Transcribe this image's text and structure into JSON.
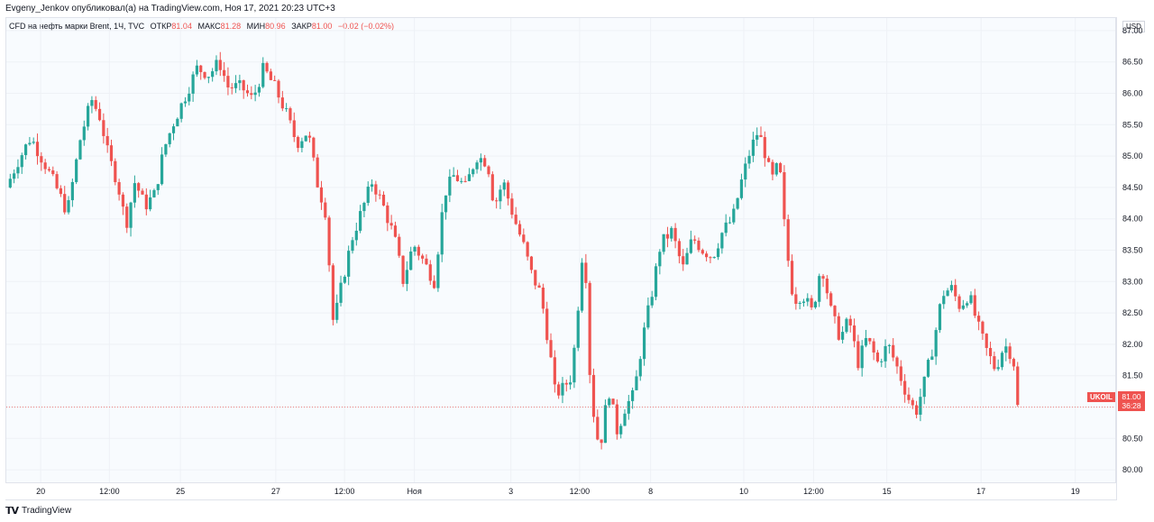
{
  "header": {
    "caption": "Evgeny_Jenkov опубликовал(а) на TradingView.com, Ноя 17, 2021 20:23 UTC+3"
  },
  "legend": {
    "symbol": "CFD на нефть марки Brent, 1Ч, TVC",
    "open_label": "ОТКР",
    "open_value": "81.04",
    "high_label": "МАКС",
    "high_value": "81.28",
    "low_label": "МИН",
    "low_value": "80.96",
    "close_label": "ЗАКР",
    "close_value": "81.00",
    "change_value": "−0.02 (−0.02%)"
  },
  "price_axis": {
    "currency": "USD"
  },
  "last_price": {
    "symbol": "UKOIL",
    "value": "81.00",
    "countdown": "36:28"
  },
  "footer": {
    "logo": "𝗧𝗩",
    "brand": "TradingView"
  },
  "colors": {
    "up": "#26a69a",
    "down": "#ef5350",
    "grid": "#eef1f6"
  },
  "chart_data": {
    "type": "candlestick",
    "title": "",
    "xlabel": "",
    "ylabel": "",
    "y_range": [
      79.8,
      87.2
    ],
    "y_ticks": [
      80.0,
      80.5,
      81.0,
      81.5,
      82.0,
      82.5,
      83.0,
      83.5,
      84.0,
      84.5,
      85.0,
      85.5,
      86.0,
      86.5,
      87.0
    ],
    "y_tick_labels": [
      "80.00",
      "80.50",
      "81.00",
      "81.50",
      "82.00",
      "82.50",
      "83.00",
      "83.50",
      "84.00",
      "84.50",
      "85.00",
      "85.50",
      "86.00",
      "86.50",
      "87.00"
    ],
    "x_ticks": [
      {
        "label": "20",
        "pos": 0.031
      },
      {
        "label": "12:00",
        "pos": 0.093
      },
      {
        "label": "25",
        "pos": 0.157
      },
      {
        "label": "27",
        "pos": 0.243
      },
      {
        "label": "12:00",
        "pos": 0.305
      },
      {
        "label": "Ноя",
        "pos": 0.368
      },
      {
        "label": "3",
        "pos": 0.455
      },
      {
        "label": "12:00",
        "pos": 0.517
      },
      {
        "label": "8",
        "pos": 0.581
      },
      {
        "label": "10",
        "pos": 0.665
      },
      {
        "label": "12:00",
        "pos": 0.728
      },
      {
        "label": "15",
        "pos": 0.794
      },
      {
        "label": "17",
        "pos": 0.879
      },
      {
        "label": "19",
        "pos": 0.964
      }
    ],
    "path_points": [
      [
        0,
        84.5
      ],
      [
        0.01,
        84.9
      ],
      [
        0.022,
        85.3
      ],
      [
        0.034,
        84.9
      ],
      [
        0.045,
        84.5
      ],
      [
        0.055,
        84.1
      ],
      [
        0.067,
        85.3
      ],
      [
        0.077,
        85.9
      ],
      [
        0.085,
        85.6
      ],
      [
        0.092,
        85.0
      ],
      [
        0.1,
        84.6
      ],
      [
        0.108,
        83.9
      ],
      [
        0.116,
        84.6
      ],
      [
        0.125,
        84.2
      ],
      [
        0.134,
        84.4
      ],
      [
        0.142,
        85.1
      ],
      [
        0.15,
        85.5
      ],
      [
        0.16,
        85.9
      ],
      [
        0.172,
        86.4
      ],
      [
        0.183,
        86.3
      ],
      [
        0.192,
        86.5
      ],
      [
        0.2,
        86.1
      ],
      [
        0.212,
        86.1
      ],
      [
        0.222,
        85.9
      ],
      [
        0.232,
        86.4
      ],
      [
        0.242,
        86.1
      ],
      [
        0.252,
        85.7
      ],
      [
        0.262,
        85.2
      ],
      [
        0.272,
        85.4
      ],
      [
        0.28,
        84.6
      ],
      [
        0.288,
        84.1
      ],
      [
        0.295,
        82.3
      ],
      [
        0.303,
        83.0
      ],
      [
        0.312,
        83.7
      ],
      [
        0.32,
        84.1
      ],
      [
        0.33,
        84.6
      ],
      [
        0.34,
        84.2
      ],
      [
        0.35,
        83.7
      ],
      [
        0.358,
        83.0
      ],
      [
        0.367,
        83.6
      ],
      [
        0.377,
        83.3
      ],
      [
        0.386,
        83.0
      ],
      [
        0.395,
        84.4
      ],
      [
        0.404,
        84.7
      ],
      [
        0.414,
        84.5
      ],
      [
        0.424,
        85.0
      ],
      [
        0.434,
        84.9
      ],
      [
        0.44,
        84.2
      ],
      [
        0.448,
        84.6
      ],
      [
        0.458,
        84.0
      ],
      [
        0.466,
        83.6
      ],
      [
        0.474,
        83.1
      ],
      [
        0.482,
        82.8
      ],
      [
        0.49,
        81.9
      ],
      [
        0.495,
        81.2
      ],
      [
        0.502,
        81.3
      ],
      [
        0.51,
        81.5
      ],
      [
        0.516,
        82.7
      ],
      [
        0.521,
        83.8
      ],
      [
        0.527,
        81.2
      ],
      [
        0.535,
        80.3
      ],
      [
        0.543,
        81.3
      ],
      [
        0.551,
        80.6
      ],
      [
        0.558,
        81.0
      ],
      [
        0.566,
        81.2
      ],
      [
        0.574,
        82.1
      ],
      [
        0.582,
        82.8
      ],
      [
        0.59,
        83.6
      ],
      [
        0.6,
        83.8
      ],
      [
        0.61,
        83.2
      ],
      [
        0.619,
        83.7
      ],
      [
        0.628,
        83.5
      ],
      [
        0.637,
        83.4
      ],
      [
        0.646,
        83.8
      ],
      [
        0.655,
        84.0
      ],
      [
        0.663,
        84.6
      ],
      [
        0.671,
        85.1
      ],
      [
        0.678,
        85.4
      ],
      [
        0.685,
        85.0
      ],
      [
        0.69,
        84.6
      ],
      [
        0.697,
        84.9
      ],
      [
        0.703,
        83.6
      ],
      [
        0.71,
        82.7
      ],
      [
        0.718,
        82.8
      ],
      [
        0.727,
        82.5
      ],
      [
        0.735,
        83.3
      ],
      [
        0.744,
        82.5
      ],
      [
        0.752,
        82.1
      ],
      [
        0.76,
        82.4
      ],
      [
        0.768,
        81.7
      ],
      [
        0.776,
        82.1
      ],
      [
        0.786,
        81.7
      ],
      [
        0.795,
        82.0
      ],
      [
        0.804,
        81.6
      ],
      [
        0.812,
        81.2
      ],
      [
        0.82,
        80.9
      ],
      [
        0.828,
        81.4
      ],
      [
        0.836,
        82.0
      ],
      [
        0.844,
        82.8
      ],
      [
        0.852,
        82.9
      ],
      [
        0.86,
        82.6
      ],
      [
        0.868,
        82.8
      ],
      [
        0.876,
        82.3
      ],
      [
        0.884,
        81.9
      ],
      [
        0.892,
        81.6
      ],
      [
        0.9,
        82.0
      ],
      [
        0.908,
        81.8
      ],
      [
        0.912,
        81.0
      ]
    ]
  }
}
